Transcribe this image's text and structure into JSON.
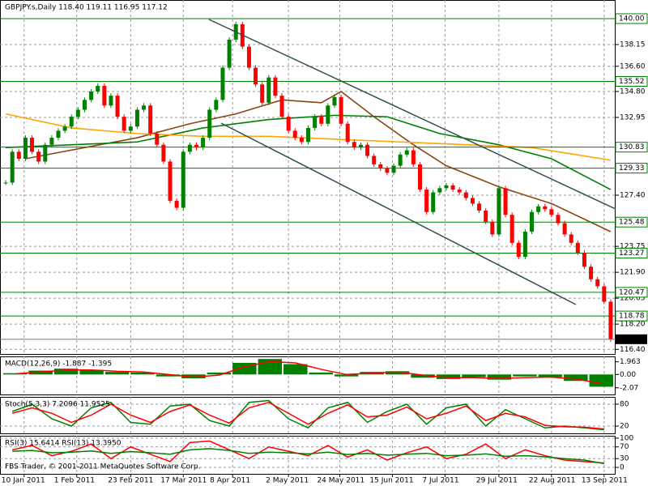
{
  "chart_data": {
    "type": "candlestick",
    "title": "GBPJPY.s,Daily  118.40 119.11 116.95 117.12",
    "footer": "FBS Trader, © 2001-2011 MetaQuotes Software Corp.",
    "up_color": "#008000",
    "down_color": "#ff0000",
    "grid": true,
    "series": [
      {
        "values": [
          128.3,
          130.5,
          130.0,
          131.5,
          130.5,
          129.8,
          131.0,
          131.5,
          132.0,
          132.3,
          133.0,
          133.5,
          134.2,
          134.8,
          135.2,
          133.8,
          134.5,
          133.0,
          132.0,
          132.3,
          133.5,
          133.8,
          131.8,
          131.0,
          129.8,
          127.0,
          126.5,
          130.5,
          131.0,
          130.8,
          131.5,
          133.5,
          134.2,
          136.5,
          138.5,
          139.6,
          138.0,
          136.5,
          135.3,
          134.0,
          135.8,
          134.5,
          133.0,
          132.0,
          131.5,
          131.2,
          132.2,
          133.0,
          132.5,
          133.8,
          134.4,
          132.5,
          131.2,
          130.8,
          131.0,
          130.2,
          129.6,
          129.3,
          129.0,
          129.5,
          130.3,
          130.6,
          129.6,
          127.8,
          126.2,
          127.6,
          127.9,
          128.1,
          127.8,
          127.6,
          127.2,
          126.8,
          126.3,
          125.5,
          124.6,
          127.9,
          126.0,
          124.0,
          123.0,
          124.8,
          126.2,
          126.6,
          126.4,
          126.0,
          125.4,
          124.6,
          124.0,
          123.3,
          122.3,
          121.4,
          120.9,
          119.8,
          117.12
        ]
      }
    ],
    "moving_averages": [
      {
        "color": "#8b4513",
        "x": [
          3,
          20,
          28,
          35,
          42,
          48,
          51,
          56,
          62,
          67,
          75,
          83,
          92
        ],
        "values": [
          130.0,
          131.5,
          132.5,
          133.2,
          134.2,
          134.0,
          134.8,
          133.0,
          131.0,
          129.5,
          128.0,
          126.8,
          124.8
        ]
      },
      {
        "color": "#008000",
        "x": [
          0,
          20,
          30,
          40,
          50,
          58,
          66,
          75,
          83,
          92
        ],
        "values": [
          130.8,
          131.2,
          132.2,
          132.8,
          133.1,
          133.0,
          131.8,
          131.0,
          130.0,
          127.8
        ]
      },
      {
        "color": "#ffa500",
        "x": [
          0,
          10,
          20,
          30,
          40,
          50,
          60,
          70,
          80,
          92
        ],
        "values": [
          133.2,
          132.2,
          131.8,
          131.6,
          131.6,
          131.4,
          131.2,
          131.0,
          130.8,
          129.9
        ]
      }
    ],
    "levels": [
      {
        "value": 140,
        "label": "140.00"
      },
      {
        "value": 135.52,
        "label": "135.52"
      },
      {
        "value": 130.83,
        "label": "130.83"
      },
      {
        "value": 129.33,
        "label": "129.33"
      },
      {
        "value": 125.48,
        "label": "125.48"
      },
      {
        "value": 123.27,
        "label": "123.27"
      },
      {
        "value": 120.47,
        "label": "120.47"
      },
      {
        "value": 118.78,
        "label": "118.78"
      }
    ],
    "level_color": "#008000",
    "last_price": 117.12,
    "xlim": [
      0,
      93
    ],
    "xticks": [
      {
        "value": 3.3,
        "label": "10 Jan 2011"
      },
      {
        "value": 11.3,
        "label": "1 Feb 2011"
      },
      {
        "value": 19.5,
        "label": "23 Feb 2011"
      },
      {
        "value": 27.5,
        "label": "17 Mar 2011"
      },
      {
        "value": 35,
        "label": "8 Apr 2011"
      },
      {
        "value": 43.5,
        "label": "2 May 2011"
      },
      {
        "value": 51.3,
        "label": "24 May 2011"
      },
      {
        "value": 59.3,
        "label": "15 Jun 2011"
      },
      {
        "value": 67.3,
        "label": "7 Jul 2011"
      },
      {
        "value": 75.5,
        "label": "29 Jul 2011"
      },
      {
        "value": 83.5,
        "label": "22 Aug 2011"
      },
      {
        "value": 91.5,
        "label": "13 Sep 2011"
      }
    ],
    "ylim": [
      116.07,
      141.33
    ],
    "yticks": [
      138.15,
      {
        "value": 136.6,
        "label": "136.60"
      },
      {
        "value": 134.8,
        "label": "134.80"
      },
      132.95,
      {
        "value": 127.4,
        "label": "127.40"
      },
      123.75,
      {
        "value": 121.9,
        "label": "121.90"
      },
      120.05,
      {
        "value": 118.2,
        "label": "118.20"
      },
      {
        "value": 116.4,
        "label": "116.40"
      }
    ],
    "panels": [
      {
        "label": "MACD(12,26,9) -1.887 -1.395",
        "ylim": [
          -3.1,
          2.8
        ],
        "yticks": [
          1.963,
          {
            "value": 0,
            "label": "0.00"
          },
          -2.07
        ],
        "series": [
          {
            "style": "histogram",
            "color": "#008000",
            "values": [
              0.2,
              0.6,
              0.9,
              0.7,
              0.4,
              0.3,
              -0.3,
              -0.6,
              0.3,
              1.8,
              2.4,
              1.6,
              0.3,
              -0.3,
              0.4,
              0.5,
              -0.5,
              -0.7,
              -0.4,
              -0.8,
              -0.3,
              -0.4,
              -1.0,
              -1.9
            ]
          },
          {
            "style": "line",
            "color": "#ff0000",
            "values": [
              0.1,
              0.4,
              0.7,
              0.7,
              0.5,
              0.4,
              0.0,
              -0.4,
              -0.1,
              1.2,
              2.0,
              1.8,
              0.8,
              0.0,
              0.2,
              0.4,
              -0.1,
              -0.5,
              -0.5,
              -0.6,
              -0.5,
              -0.4,
              -0.7,
              -1.4
            ]
          }
        ]
      },
      {
        "label": "Stoch(5,3,3) 7.2096 11.9525",
        "ylim": [
          0,
          100
        ],
        "yticks": [
          80,
          20
        ],
        "series": [
          {
            "style": "line",
            "color": "#008000",
            "values": [
              60,
              80,
              40,
              20,
              70,
              85,
              30,
              25,
              75,
              80,
              35,
              20,
              85,
              90,
              40,
              15,
              70,
              85,
              30,
              60,
              80,
              25,
              70,
              80,
              20,
              65,
              40,
              15,
              20,
              15,
              10
            ]
          },
          {
            "style": "line",
            "color": "#ff0000",
            "values": [
              55,
              70,
              55,
              30,
              50,
              80,
              50,
              30,
              60,
              78,
              50,
              28,
              70,
              85,
              55,
              25,
              55,
              78,
              45,
              50,
              72,
              40,
              55,
              75,
              35,
              55,
              45,
              22,
              18,
              17,
              12
            ]
          }
        ]
      },
      {
        "label": "RSI(3) 15.6414 RSI(13) 13.3950",
        "ylim": [
          -22,
          108
        ],
        "yticks": [
          100,
          70,
          30,
          0
        ],
        "series": [
          {
            "style": "line",
            "color": "#ff0000",
            "values": [
              60,
              75,
              40,
              55,
              80,
              30,
              70,
              45,
              20,
              85,
              90,
              60,
              30,
              70,
              55,
              40,
              75,
              35,
              60,
              25,
              50,
              70,
              30,
              45,
              80,
              30,
              60,
              40,
              25,
              20,
              15
            ]
          },
          {
            "style": "line",
            "color": "#008000",
            "values": [
              55,
              58,
              50,
              52,
              56,
              48,
              54,
              50,
              45,
              60,
              64,
              58,
              48,
              52,
              50,
              46,
              52,
              44,
              48,
              42,
              45,
              48,
              40,
              42,
              46,
              38,
              40,
              36,
              30,
              25,
              13
            ]
          }
        ]
      }
    ]
  }
}
